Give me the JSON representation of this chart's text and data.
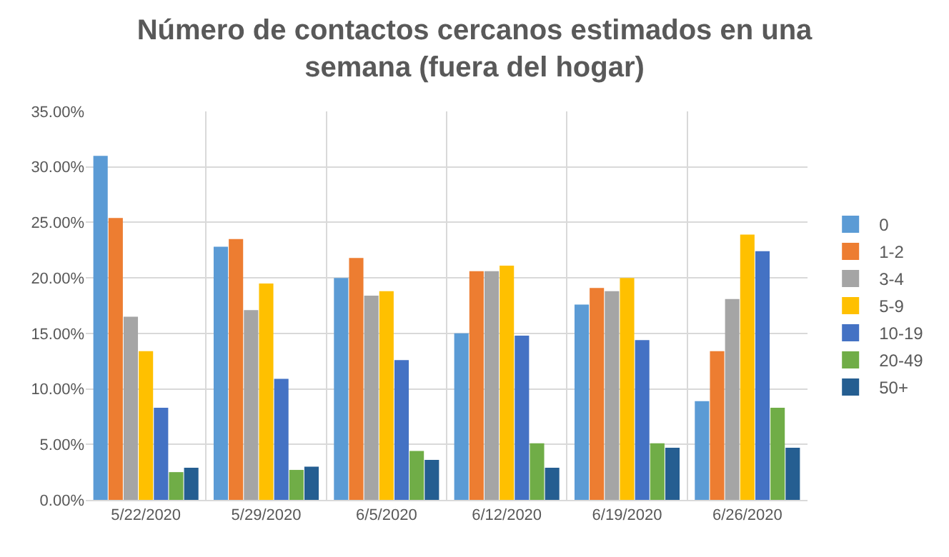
{
  "chart_data": {
    "type": "bar",
    "title": "Número de contactos cercanos estimados en una\nsemana (fuera del hogar)",
    "categories": [
      "5/22/2020",
      "5/29/2020",
      "6/5/2020",
      "6/12/2020",
      "6/19/2020",
      "6/26/2020"
    ],
    "series": [
      {
        "name": "0",
        "color": "#5b9bd5",
        "values": [
          31.0,
          22.8,
          20.0,
          15.0,
          17.6,
          8.9
        ]
      },
      {
        "name": "1-2",
        "color": "#ed7d31",
        "values": [
          25.4,
          23.5,
          21.8,
          20.6,
          19.1,
          13.4
        ]
      },
      {
        "name": "3-4",
        "color": "#a5a5a5",
        "values": [
          16.5,
          17.1,
          18.4,
          20.6,
          18.8,
          18.1
        ]
      },
      {
        "name": "5-9",
        "color": "#ffc000",
        "values": [
          13.4,
          19.5,
          18.8,
          21.1,
          20.0,
          23.9
        ]
      },
      {
        "name": "10-19",
        "color": "#4472c4",
        "values": [
          8.3,
          10.9,
          12.6,
          14.8,
          14.4,
          22.4
        ]
      },
      {
        "name": "20-49",
        "color": "#70ad47",
        "values": [
          2.5,
          2.7,
          4.4,
          5.1,
          5.1,
          8.3
        ]
      },
      {
        "name": "50+",
        "color": "#255e91",
        "values": [
          2.9,
          3.0,
          3.6,
          2.9,
          4.7,
          4.7
        ]
      }
    ],
    "ylim": [
      0,
      35
    ],
    "yticks": [
      {
        "value": 0,
        "label": "0.00%"
      },
      {
        "value": 5,
        "label": "5.00%"
      },
      {
        "value": 10,
        "label": "10.00%"
      },
      {
        "value": 15,
        "label": "15.00%"
      },
      {
        "value": 20,
        "label": "20.00%"
      },
      {
        "value": 25,
        "label": "25.00%"
      },
      {
        "value": 30,
        "label": "30.00%"
      },
      {
        "value": 35,
        "label": "35.00%"
      }
    ],
    "grid": true,
    "legend": "right"
  }
}
